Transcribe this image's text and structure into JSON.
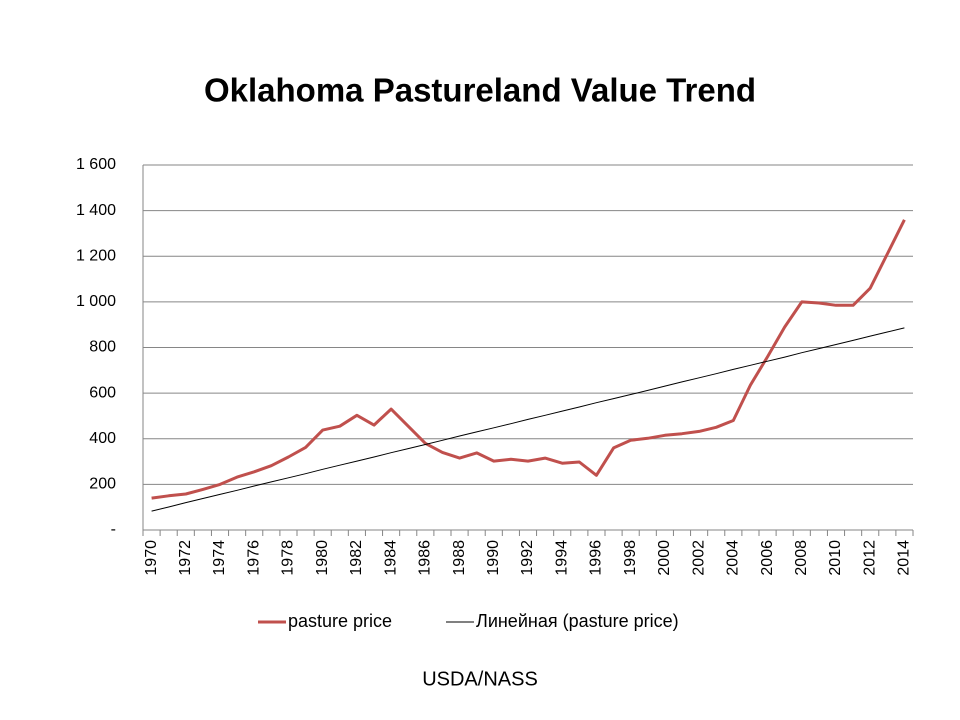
{
  "chart_data": {
    "type": "line",
    "title": "Oklahoma Pastureland Value Trend",
    "source": "USDA/NASS",
    "categories": [
      "1970",
      null,
      "1972",
      null,
      "1974",
      null,
      "1976",
      null,
      "1978",
      null,
      "1980",
      null,
      "1982",
      null,
      "1984",
      null,
      "1986",
      null,
      "1988",
      null,
      "1990",
      null,
      "1992",
      null,
      "1994",
      null,
      "1996",
      null,
      "1998",
      null,
      "2000",
      null,
      "2002",
      null,
      "2004",
      null,
      "2006",
      null,
      "2008",
      null,
      "2010",
      null,
      "2012",
      null,
      "2014"
    ],
    "series": [
      {
        "name": "pasture price",
        "color": "#c0504d",
        "width": 3,
        "values": [
          140,
          150,
          158,
          178,
          200,
          232,
          255,
          282,
          320,
          362,
          438,
          455,
          503,
          460,
          530,
          455,
          380,
          340,
          315,
          338,
          302,
          310,
          302,
          315,
          293,
          298,
          240,
          360,
          393,
          402,
          415,
          422,
          432,
          450,
          480,
          635,
          760,
          890,
          1000,
          995,
          985,
          985,
          1060,
          1210,
          1360
        ]
      },
      {
        "name": "Линейная (pasture price)",
        "color": "#000000",
        "width": 1,
        "values": [
          83,
          101,
          120,
          138,
          156,
          174,
          193,
          211,
          229,
          247,
          266,
          284,
          302,
          320,
          339,
          357,
          375,
          393,
          412,
          430,
          448,
          466,
          485,
          503,
          521,
          539,
          558,
          576,
          594,
          612,
          631,
          649,
          667,
          685,
          704,
          722,
          740,
          758,
          777,
          795,
          813,
          831,
          850,
          868,
          886
        ]
      }
    ],
    "ylim": [
      0,
      1600
    ],
    "yticks": [
      {
        "value": 0,
        "label": "-"
      },
      200,
      400,
      600,
      800,
      {
        "value": 1000,
        "label": "1 000"
      },
      {
        "value": 1200,
        "label": "1 200"
      },
      {
        "value": 1400,
        "label": "1 400"
      },
      {
        "value": 1600,
        "label": "1 600"
      }
    ],
    "grid": true,
    "legend": "bottom"
  }
}
